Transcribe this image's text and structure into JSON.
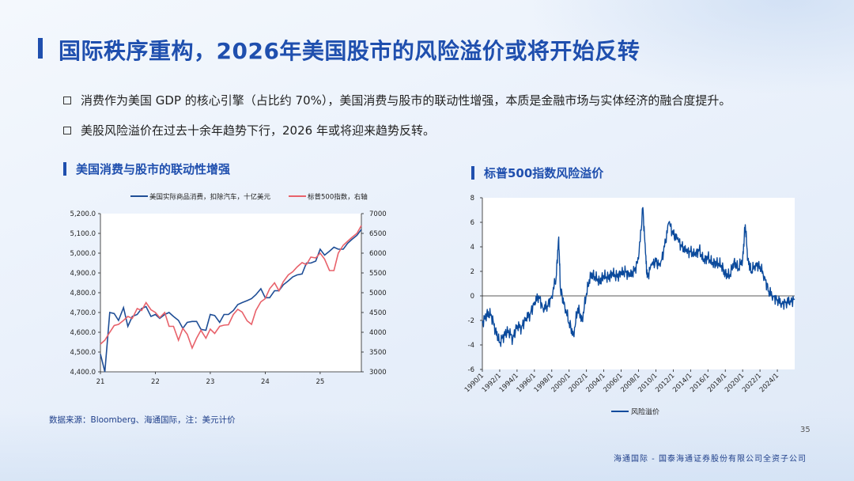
{
  "page": {
    "title": "国际秩序重构，2026年美国股市的风险溢价或将开始反转",
    "bullets": [
      "消费作为美国 GDP 的核心引擎（占比约 70%），美国消费与股市的联动性增强，本质是金融市场与实体经济的融合度提升。",
      "美股风险溢价在过去十余年趋势下行，2026 年或将迎来趋势反转。"
    ],
    "left_subtitle": "美国消费与股市的联动性增强",
    "right_subtitle": "标普500指数风险溢价",
    "source": "数据来源：Bloomberg、海通国际，注：美元计价",
    "page_number": "35",
    "footer": "海通国际 - 国泰海通证券股份有限公司全资子公司"
  },
  "colors": {
    "accent": "#1f4fae",
    "series_blue": "#1f4e96",
    "series_red": "#e8626b",
    "line_dark": "#0b4a9c"
  },
  "chart_data": [
    {
      "type": "line",
      "title": "美国消费与股市的联动性增强",
      "x_ticks": [
        "21",
        "22",
        "23",
        "24",
        "25"
      ],
      "xlim": [
        21,
        25.75
      ],
      "ylim_left": [
        4400,
        5200
      ],
      "ylim_right": [
        3000,
        7000
      ],
      "y_ticks_left": [
        "5,200.0",
        "5,100.0",
        "5,000.0",
        "4,900.0",
        "4,800.0",
        "4,700.0",
        "4,600.0",
        "4,500.0",
        "4,400.0"
      ],
      "y_ticks_right": [
        "7000",
        "6500",
        "6000",
        "5500",
        "5000",
        "4500",
        "4000",
        "3500",
        "3000"
      ],
      "legend": [
        "美国实际商品消费，扣除汽车，十亿美元",
        "标普500指数，右轴"
      ],
      "series": [
        {
          "name": "美国实际商品消费，扣除汽车，十亿美元",
          "axis": "left",
          "x": [
            21.0,
            21.08,
            21.17,
            21.25,
            21.33,
            21.42,
            21.5,
            21.58,
            21.67,
            21.75,
            21.83,
            21.92,
            22.0,
            22.08,
            22.17,
            22.25,
            22.33,
            22.42,
            22.5,
            22.58,
            22.67,
            22.75,
            22.83,
            22.92,
            23.0,
            23.08,
            23.17,
            23.25,
            23.33,
            23.42,
            23.5,
            23.58,
            23.67,
            23.75,
            23.83,
            23.92,
            24.0,
            24.08,
            24.17,
            24.25,
            24.33,
            24.42,
            24.5,
            24.58,
            24.67,
            24.75,
            24.83,
            24.92,
            25.0,
            25.08,
            25.17,
            25.25,
            25.33,
            25.42,
            25.5,
            25.58,
            25.67,
            25.75
          ],
          "values": [
            4490,
            4400,
            4700,
            4695,
            4660,
            4725,
            4630,
            4680,
            4690,
            4720,
            4730,
            4680,
            4690,
            4670,
            4690,
            4700,
            4680,
            4660,
            4620,
            4650,
            4655,
            4655,
            4615,
            4610,
            4690,
            4685,
            4650,
            4690,
            4690,
            4710,
            4740,
            4750,
            4760,
            4770,
            4790,
            4820,
            4775,
            4775,
            4810,
            4810,
            4840,
            4860,
            4880,
            4890,
            4895,
            4950,
            4950,
            4960,
            5020,
            4990,
            5010,
            5030,
            5020,
            5020,
            5050,
            5070,
            5090,
            5120
          ]
        },
        {
          "name": "标普500指数，右轴",
          "axis": "right",
          "x": [
            21.0,
            21.08,
            21.17,
            21.25,
            21.33,
            21.42,
            21.5,
            21.58,
            21.67,
            21.75,
            21.83,
            21.92,
            22.0,
            22.08,
            22.17,
            22.25,
            22.33,
            22.42,
            22.5,
            22.58,
            22.67,
            22.75,
            22.83,
            22.92,
            23.0,
            23.08,
            23.17,
            23.25,
            23.33,
            23.42,
            23.5,
            23.58,
            23.67,
            23.75,
            23.83,
            23.92,
            24.0,
            24.08,
            24.17,
            24.25,
            24.33,
            24.42,
            24.5,
            24.58,
            24.67,
            24.75,
            24.83,
            24.92,
            25.0,
            25.08,
            25.17,
            25.25,
            25.33,
            25.42,
            25.5,
            25.58,
            25.67,
            25.75
          ],
          "values": [
            3700,
            3800,
            4000,
            4170,
            4200,
            4300,
            4400,
            4350,
            4600,
            4550,
            4750,
            4570,
            4500,
            4370,
            4500,
            4150,
            4150,
            3800,
            4100,
            3950,
            3600,
            3850,
            4050,
            3850,
            4080,
            3970,
            4150,
            4180,
            4190,
            4450,
            4580,
            4510,
            4290,
            4200,
            4550,
            4770,
            4850,
            5100,
            5250,
            5050,
            5280,
            5450,
            5530,
            5650,
            5760,
            5710,
            5900,
            5880,
            6000,
            5850,
            5560,
            5560,
            6000,
            6200,
            6300,
            6400,
            6500,
            6700
          ]
        }
      ]
    },
    {
      "type": "line",
      "title": "标普500指数风险溢价",
      "x_ticks": [
        "1990/1",
        "1992/1",
        "1994/1",
        "1996/1",
        "1998/1",
        "2000/1",
        "2002/1",
        "2004/1",
        "2006/1",
        "2008/1",
        "2010/1",
        "2012/1",
        "2014/1",
        "2016/1",
        "2018/1",
        "2020/1",
        "2022/1",
        "2024/1"
      ],
      "xlim": [
        1990,
        2026
      ],
      "ylim": [
        -6,
        8
      ],
      "y_ticks": [
        "8",
        "6",
        "4",
        "2",
        "0",
        "-2",
        "-4",
        "-6"
      ],
      "legend": [
        "风险溢价"
      ],
      "series": [
        {
          "name": "风险溢价",
          "x": [
            1990.0,
            1990.5,
            1991.0,
            1991.5,
            1992.0,
            1992.5,
            1993.0,
            1993.5,
            1994.0,
            1994.5,
            1995.0,
            1995.5,
            1996.0,
            1996.5,
            1997.0,
            1997.5,
            1998.0,
            1998.5,
            1998.8,
            1999.0,
            1999.5,
            2000.0,
            2000.5,
            2001.0,
            2001.5,
            2002.0,
            2002.5,
            2003.0,
            2003.5,
            2004.0,
            2004.5,
            2005.0,
            2005.5,
            2006.0,
            2006.5,
            2007.0,
            2007.5,
            2008.0,
            2008.5,
            2008.8,
            2009.0,
            2009.5,
            2010.0,
            2010.5,
            2011.0,
            2011.5,
            2012.0,
            2012.5,
            2013.0,
            2013.5,
            2014.0,
            2014.5,
            2015.0,
            2015.5,
            2016.0,
            2016.5,
            2017.0,
            2017.5,
            2018.0,
            2018.5,
            2019.0,
            2019.5,
            2020.0,
            2020.3,
            2020.6,
            2021.0,
            2021.5,
            2022.0,
            2022.5,
            2023.0,
            2023.5,
            2024.0,
            2024.5,
            2025.0,
            2025.5,
            2026.0
          ],
          "values": [
            -2.2,
            -1.5,
            -1.5,
            -2.8,
            -3.8,
            -3.2,
            -2.8,
            -3.5,
            -2.4,
            -2.6,
            -1.8,
            -1.5,
            -0.5,
            0.0,
            -1.0,
            -0.8,
            0.0,
            1.5,
            4.8,
            0.5,
            -0.8,
            -2.2,
            -3.2,
            -1.0,
            -2.0,
            0.2,
            1.8,
            1.5,
            1.2,
            1.6,
            1.5,
            1.8,
            1.6,
            1.8,
            2.0,
            1.6,
            2.0,
            3.0,
            7.2,
            3.5,
            1.5,
            2.5,
            2.8,
            2.4,
            4.0,
            6.0,
            5.0,
            4.6,
            4.0,
            3.6,
            3.6,
            3.3,
            3.8,
            2.8,
            3.2,
            2.6,
            2.7,
            2.5,
            1.8,
            1.6,
            2.8,
            2.2,
            3.0,
            5.8,
            3.0,
            2.0,
            2.6,
            2.4,
            1.6,
            0.4,
            0.0,
            -0.3,
            -0.6,
            -0.5,
            -0.4,
            -0.3
          ]
        }
      ]
    }
  ]
}
